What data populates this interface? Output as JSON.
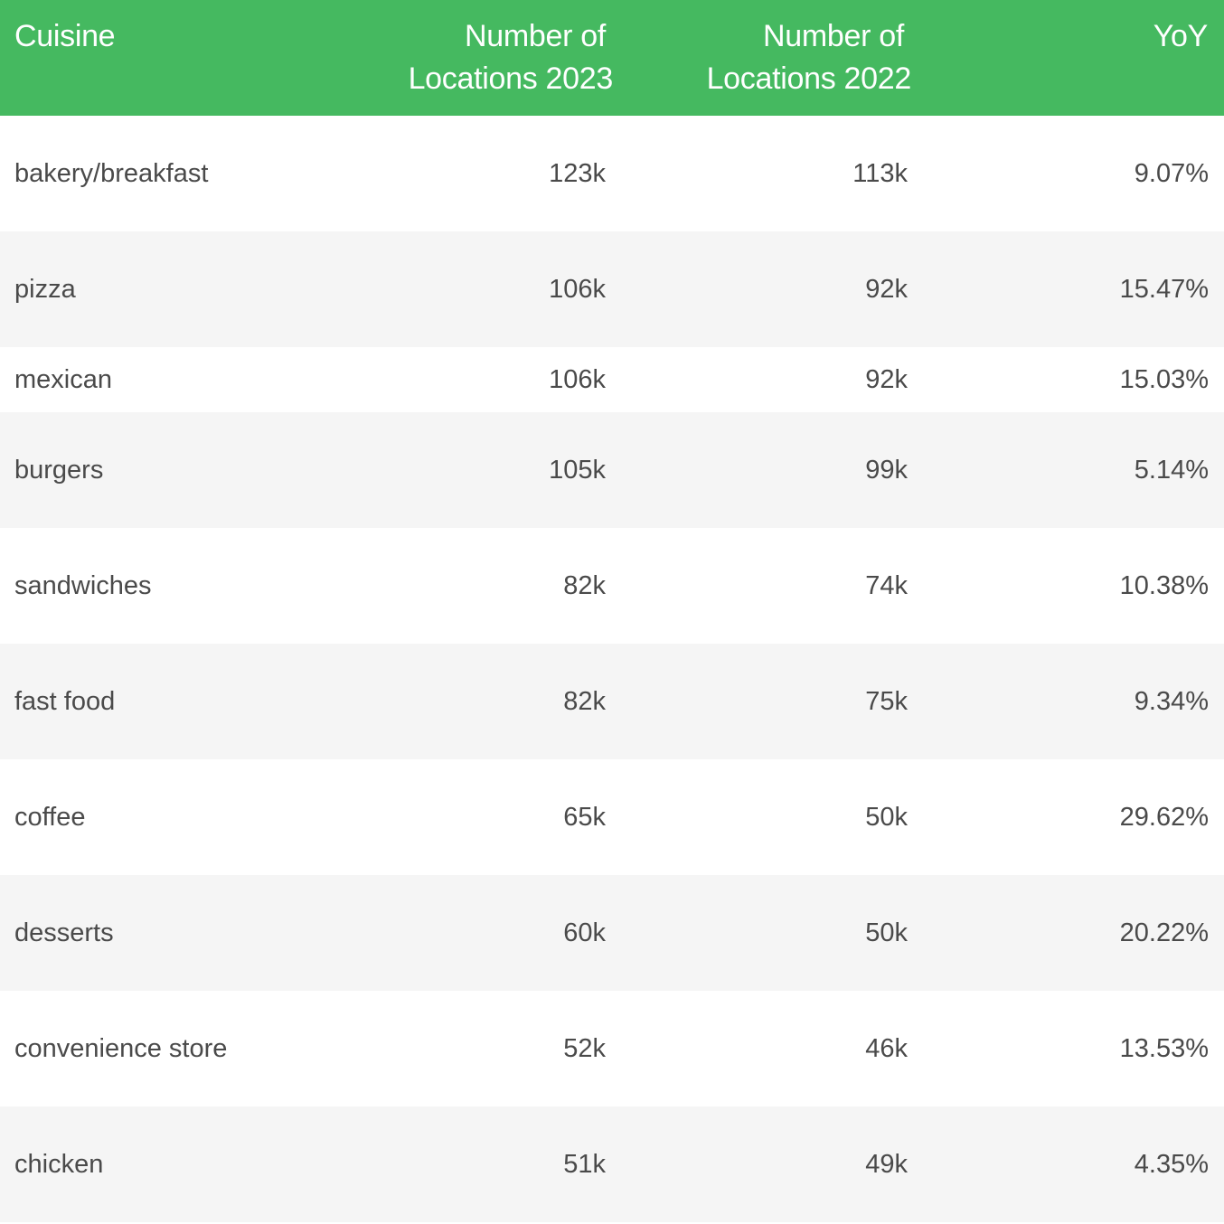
{
  "chart_data": {
    "type": "table",
    "columns": [
      "Cuisine",
      "Number of Locations 2023",
      "Number of Locations 2022",
      "YoY"
    ],
    "header": {
      "cuisine": "Cuisine",
      "loc2023_line1": "Number of",
      "loc2023_line2": "Locations 2023",
      "loc2022_line1": "Number of",
      "loc2022_line2": "Locations 2022",
      "yoy": "YoY"
    },
    "rows": [
      {
        "cuisine": "bakery/breakfast",
        "loc2023": "123k",
        "loc2022": "113k",
        "yoy": "9.07%"
      },
      {
        "cuisine": "pizza",
        "loc2023": "106k",
        "loc2022": "92k",
        "yoy": "15.47%"
      },
      {
        "cuisine": "mexican",
        "loc2023": "106k",
        "loc2022": "92k",
        "yoy": "15.03%"
      },
      {
        "cuisine": "burgers",
        "loc2023": "105k",
        "loc2022": "99k",
        "yoy": "5.14%"
      },
      {
        "cuisine": "sandwiches",
        "loc2023": "82k",
        "loc2022": "74k",
        "yoy": "10.38%"
      },
      {
        "cuisine": "fast food",
        "loc2023": "82k",
        "loc2022": "75k",
        "yoy": "9.34%"
      },
      {
        "cuisine": "coffee",
        "loc2023": "65k",
        "loc2022": "50k",
        "yoy": "29.62%"
      },
      {
        "cuisine": "desserts",
        "loc2023": "60k",
        "loc2022": "50k",
        "yoy": "20.22%"
      },
      {
        "cuisine": "convenience store",
        "loc2023": "52k",
        "loc2022": "46k",
        "yoy": "13.53%"
      },
      {
        "cuisine": "chicken",
        "loc2023": "51k",
        "loc2022": "49k",
        "yoy": "4.35%"
      }
    ]
  },
  "colors": {
    "header_bg": "#45b960",
    "header_text": "#ffffff",
    "row_odd": "#ffffff",
    "row_even": "#f5f5f5",
    "body_text": "#4a4a4a"
  }
}
